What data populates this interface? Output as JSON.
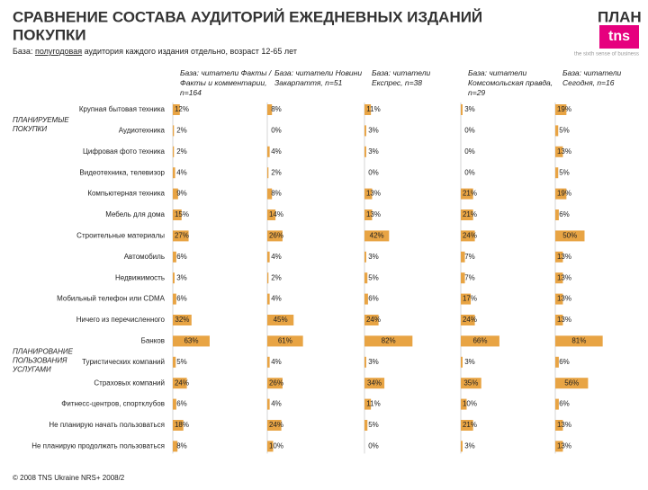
{
  "title_lines": [
    "СРАВНЕНИЕ СОСТАВА АУДИТОРИЙ ЕЖЕДНЕВНЫХ ИЗДАНИЙ",
    "ПОКУПКИ"
  ],
  "title_cut": "ПЛАН",
  "subtitle_prefix": "База:",
  "subtitle_link": "полугодовая",
  "subtitle_rest": "аудитория каждого издания отдельно, возраст 12-65 лет",
  "logo": "tns",
  "tagline": "the sixth sense of business",
  "footer": "© 2008 TNS Ukraine NRS+ 2008/2",
  "groups": [
    {
      "label": "ПЛАНИРУЕМЫЕ ПОКУПКИ",
      "row": 0
    },
    {
      "label": "ПЛАНИРОВАНИЕ ПОЛЬЗОВАНИЯ УСЛУГАМИ",
      "row": 11
    }
  ],
  "rows": [
    "Крупная бытовая техника",
    "Аудиотехника",
    "Цифровая фото техника",
    "Видеотехника, телевизор",
    "Компьютерная техника",
    "Мебель для дома",
    "Строительные материалы",
    "Автомобиль",
    "Недвижимость",
    "Мобильный телефон или CDMA",
    "Ничего из перечисленного",
    "Банков",
    "Туристических компаний",
    "Страховых компаний",
    "Фитнесс-центров, спортклубов",
    "Не планирую начать пользоваться",
    "Не планирую продолжать пользоваться"
  ],
  "chart_data": [
    {
      "type": "bar",
      "title": "База: читатели Факты / Факты и комментарии, n=164",
      "color": "#e8a444",
      "values": [
        12,
        2,
        2,
        4,
        9,
        15,
        27,
        6,
        3,
        6,
        32,
        63,
        5,
        24,
        6,
        18,
        8
      ],
      "value_labels": [
        "12%",
        "2%",
        "2%",
        "4%",
        "9%",
        "15%",
        "27%",
        "6%",
        "3%",
        "6%",
        "32%",
        "63%",
        "5%",
        "24%",
        "6%",
        "18%",
        "8%"
      ]
    },
    {
      "type": "bar",
      "title": "База: читатели Новини Закарпаття, n=51",
      "color": "#e8a444",
      "values": [
        8,
        0,
        4,
        2,
        8,
        14,
        26,
        4,
        2,
        4,
        45,
        61,
        4,
        26,
        4,
        24,
        10
      ],
      "value_labels": [
        "8%",
        "0%",
        "4%",
        "2%",
        "8%",
        "14%",
        "26%",
        "4%",
        "2%",
        "4%",
        "45%",
        "61%",
        "4%",
        "26%",
        "4%",
        "24%",
        "10%"
      ]
    },
    {
      "type": "bar",
      "title": "База: читатели Експрес, n=38",
      "color": "#e8a444",
      "values": [
        11,
        3,
        3,
        0,
        13,
        13,
        42,
        3,
        5,
        6,
        24,
        82,
        3,
        34,
        11,
        5,
        0
      ],
      "value_labels": [
        "11%",
        "3%",
        "3%",
        "0%",
        "13%",
        "13%",
        "42%",
        "3%",
        "5%",
        "6%",
        "24%",
        "82%",
        "3%",
        "34%",
        "11%",
        "5%",
        "0%"
      ]
    },
    {
      "type": "bar",
      "title": "База: читатели Комсомольская правда, n=29",
      "color": "#e8a444",
      "values": [
        3,
        0,
        0,
        0,
        21,
        21,
        24,
        7,
        7,
        17,
        24,
        66,
        3,
        35,
        10,
        21,
        3
      ],
      "value_labels": [
        "3%",
        "0%",
        "0%",
        "0%",
        "21%",
        "21%",
        "24%",
        "7%",
        "7%",
        "17%",
        "24%",
        "66%",
        "3%",
        "35%",
        "10%",
        "21%",
        "3%"
      ]
    },
    {
      "type": "bar",
      "title": "База: читатели Сегодня, n=16",
      "color": "#e8a444",
      "values": [
        19,
        5,
        13,
        5,
        19,
        6,
        50,
        13,
        13,
        13,
        13,
        81,
        6,
        56,
        6,
        13,
        13
      ],
      "value_labels": [
        "19%",
        "5%",
        "13%",
        "5%",
        "19%",
        "6%",
        "50%",
        "13%",
        "13%",
        "13%",
        "13%",
        "81%",
        "6%",
        "56%",
        "6%",
        "13%",
        "13%"
      ]
    }
  ]
}
